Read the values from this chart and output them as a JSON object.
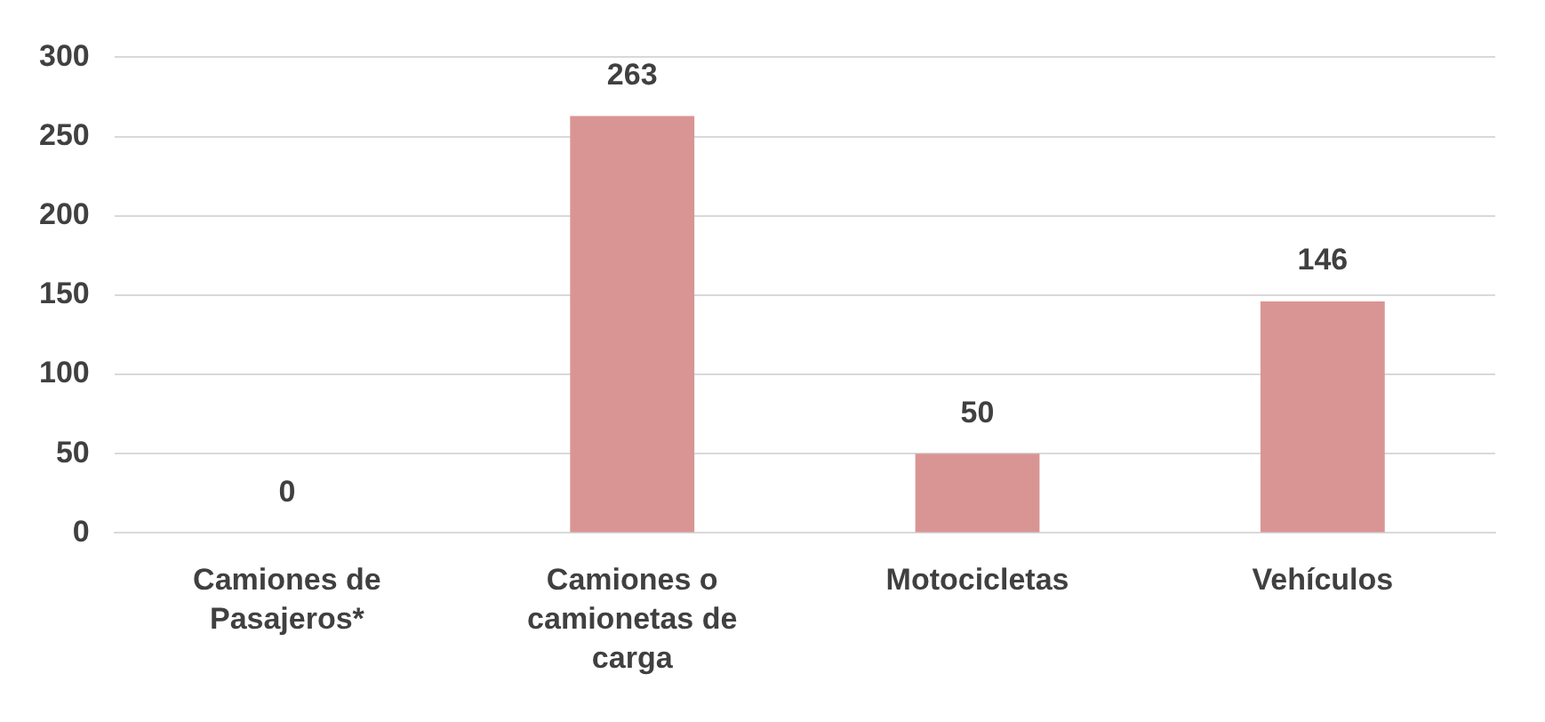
{
  "chart_data": {
    "type": "bar",
    "categories": [
      "Camiones de Pasajeros*",
      "Camiones o camionetas de carga",
      "Motocicletas",
      "Vehículos"
    ],
    "values": [
      0,
      263,
      50,
      146
    ],
    "color": "#d99594",
    "ylim": [
      0,
      300
    ],
    "yticks": [
      0,
      50,
      100,
      150,
      200,
      250,
      300
    ],
    "grid": "y",
    "data_labels": true
  }
}
